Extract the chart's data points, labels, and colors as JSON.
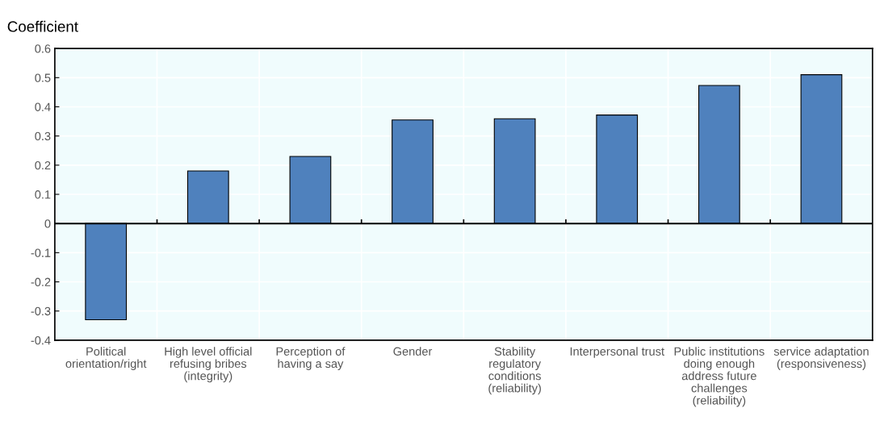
{
  "chart_data": {
    "type": "bar",
    "ylabel": "Coefficient",
    "categories": [
      "Political orientation/right",
      "High level official refusing bribes (integrity)",
      "Perception of having a say",
      "Gender",
      "Stability regulatory conditions (reliability)",
      "Interpersonal trust",
      "Public institutions doing enough address future challenges (reliability)",
      "service adaptation (responsiveness)"
    ],
    "values": [
      -0.33,
      0.18,
      0.23,
      0.355,
      0.359,
      0.372,
      0.473,
      0.51
    ],
    "color": "#4f81bd",
    "ylim": [
      -0.4,
      0.6
    ],
    "yticks": [
      {
        "value": -0.4,
        "label": "-0.4"
      },
      {
        "value": -0.3,
        "label": "-0.3"
      },
      {
        "value": -0.2,
        "label": "-0.2"
      },
      {
        "value": -0.1,
        "label": "-0.1"
      },
      0,
      0.1,
      0.2,
      0.3,
      0.4,
      0.5,
      0.6
    ],
    "grid": true
  }
}
